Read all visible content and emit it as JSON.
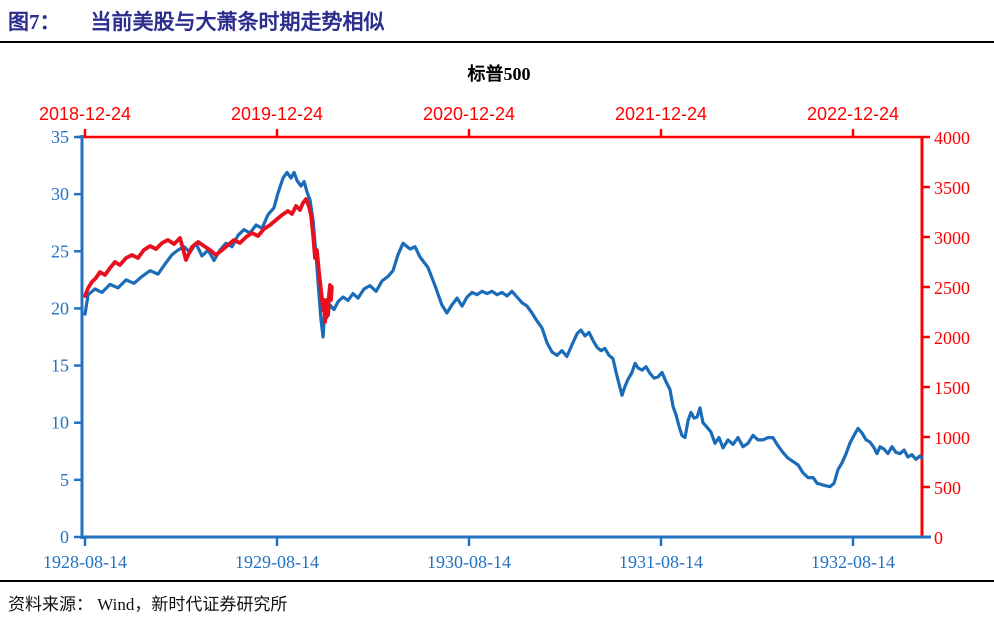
{
  "header": {
    "figure_label": "图7：",
    "title": "当前美股与大萧条时期走势相似"
  },
  "footer": {
    "source": "资料来源： Wind，新时代证券研究所"
  },
  "colors": {
    "title_navy": "#2B2E8C",
    "blue": "#1A6BB8",
    "red_text": "#FF0000",
    "red_line": "#E8101E"
  },
  "chart_data": {
    "type": "line",
    "title": "标普500",
    "legend_position": "top-center",
    "grid": false,
    "x_unit": "years_since_series_start",
    "x_tick_interval_years": 1,
    "x_span_years": 4.36,
    "top_axis": {
      "color": "#FF0000",
      "tick_labels": [
        "2018-12-24",
        "2019-12-24",
        "2020-12-24",
        "2021-12-24",
        "2022-12-24"
      ]
    },
    "bottom_axis": {
      "color": "#2272C3",
      "tick_labels": [
        "1928-08-14",
        "1929-08-14",
        "1930-08-14",
        "1931-08-14",
        "1932-08-14"
      ]
    },
    "left_axis": {
      "color": "#2272C3",
      "min": 0,
      "max": 35,
      "step": 5,
      "tick_labels": [
        "0",
        "5",
        "10",
        "15",
        "20",
        "25",
        "30",
        "35"
      ]
    },
    "right_axis": {
      "color": "#FF0000",
      "min": 0,
      "max": 4000,
      "step": 500,
      "tick_labels": [
        "0",
        "500",
        "1000",
        "1500",
        "2000",
        "2500",
        "3000",
        "3500",
        "4000"
      ]
    },
    "series": [
      {
        "id": "dow-1928-1932",
        "label": "",
        "axis": "left",
        "color": "#1A6BB8",
        "points": [
          [
            0,
            19.5
          ],
          [
            0.016,
            21.2
          ],
          [
            0.052,
            21.7
          ],
          [
            0.089,
            21.4
          ],
          [
            0.13,
            22.1
          ],
          [
            0.172,
            21.8
          ],
          [
            0.214,
            22.5
          ],
          [
            0.255,
            22.2
          ],
          [
            0.297,
            22.8
          ],
          [
            0.339,
            23.3
          ],
          [
            0.38,
            23
          ],
          [
            0.422,
            24
          ],
          [
            0.453,
            24.7
          ],
          [
            0.484,
            25.1
          ],
          [
            0.516,
            25.4
          ],
          [
            0.547,
            24.9
          ],
          [
            0.578,
            25.7
          ],
          [
            0.609,
            24.6
          ],
          [
            0.641,
            25.1
          ],
          [
            0.672,
            24.2
          ],
          [
            0.703,
            25.1
          ],
          [
            0.734,
            25.7
          ],
          [
            0.766,
            25.4
          ],
          [
            0.797,
            26.4
          ],
          [
            0.828,
            26.9
          ],
          [
            0.859,
            26.6
          ],
          [
            0.891,
            27.3
          ],
          [
            0.922,
            27
          ],
          [
            0.953,
            28.2
          ],
          [
            0.984,
            28.8
          ],
          [
            1.005,
            30.1
          ],
          [
            1.031,
            31.4
          ],
          [
            1.052,
            31.9
          ],
          [
            1.073,
            31.4
          ],
          [
            1.089,
            31.9
          ],
          [
            1.104,
            31.2
          ],
          [
            1.125,
            30.7
          ],
          [
            1.141,
            31.1
          ],
          [
            1.156,
            30.2
          ],
          [
            1.172,
            29.5
          ],
          [
            1.188,
            27.7
          ],
          [
            1.203,
            24.7
          ],
          [
            1.219,
            21.2
          ],
          [
            1.229,
            19
          ],
          [
            1.24,
            17.5
          ],
          [
            1.25,
            20.3
          ],
          [
            1.26,
            19.2
          ],
          [
            1.276,
            20.3
          ],
          [
            1.297,
            19.9
          ],
          [
            1.318,
            20.6
          ],
          [
            1.344,
            21
          ],
          [
            1.37,
            20.7
          ],
          [
            1.396,
            21.3
          ],
          [
            1.422,
            20.9
          ],
          [
            1.453,
            21.7
          ],
          [
            1.484,
            22
          ],
          [
            1.516,
            21.5
          ],
          [
            1.547,
            22.4
          ],
          [
            1.578,
            22.8
          ],
          [
            1.604,
            23.3
          ],
          [
            1.63,
            24.7
          ],
          [
            1.656,
            25.7
          ],
          [
            1.693,
            25.2
          ],
          [
            1.719,
            25.4
          ],
          [
            1.745,
            24.5
          ],
          [
            1.786,
            23.6
          ],
          [
            1.823,
            22
          ],
          [
            1.859,
            20.3
          ],
          [
            1.885,
            19.6
          ],
          [
            1.911,
            20.3
          ],
          [
            1.938,
            20.9
          ],
          [
            1.964,
            20.2
          ],
          [
            1.99,
            21
          ],
          [
            2.016,
            21.4
          ],
          [
            2.042,
            21.2
          ],
          [
            2.068,
            21.5
          ],
          [
            2.094,
            21.3
          ],
          [
            2.12,
            21.5
          ],
          [
            2.146,
            21.2
          ],
          [
            2.172,
            21.4
          ],
          [
            2.198,
            21.1
          ],
          [
            2.224,
            21.5
          ],
          [
            2.25,
            21
          ],
          [
            2.276,
            20.5
          ],
          [
            2.302,
            20.2
          ],
          [
            2.328,
            19.6
          ],
          [
            2.354,
            18.9
          ],
          [
            2.38,
            18.3
          ],
          [
            2.406,
            17
          ],
          [
            2.432,
            16.2
          ],
          [
            2.458,
            15.9
          ],
          [
            2.484,
            16.3
          ],
          [
            2.51,
            15.8
          ],
          [
            2.536,
            16.8
          ],
          [
            2.563,
            17.8
          ],
          [
            2.583,
            18.1
          ],
          [
            2.604,
            17.6
          ],
          [
            2.625,
            17.9
          ],
          [
            2.646,
            17.2
          ],
          [
            2.667,
            16.6
          ],
          [
            2.688,
            16.3
          ],
          [
            2.708,
            16.5
          ],
          [
            2.729,
            15.9
          ],
          [
            2.75,
            15.6
          ],
          [
            2.766,
            14.4
          ],
          [
            2.781,
            13.4
          ],
          [
            2.797,
            12.4
          ],
          [
            2.813,
            13.2
          ],
          [
            2.828,
            13.8
          ],
          [
            2.849,
            14.4
          ],
          [
            2.865,
            15.2
          ],
          [
            2.88,
            14.8
          ],
          [
            2.901,
            14.6
          ],
          [
            2.922,
            14.9
          ],
          [
            2.943,
            14.3
          ],
          [
            2.964,
            13.9
          ],
          [
            2.984,
            14
          ],
          [
            3.005,
            14.4
          ],
          [
            3.026,
            13.6
          ],
          [
            3.047,
            12.9
          ],
          [
            3.063,
            11.4
          ],
          [
            3.078,
            10.7
          ],
          [
            3.094,
            9.7
          ],
          [
            3.109,
            8.9
          ],
          [
            3.125,
            8.7
          ],
          [
            3.141,
            10.2
          ],
          [
            3.156,
            10.9
          ],
          [
            3.172,
            10.4
          ],
          [
            3.188,
            10.5
          ],
          [
            3.203,
            11.3
          ],
          [
            3.219,
            10
          ],
          [
            3.24,
            9.6
          ],
          [
            3.26,
            9.2
          ],
          [
            3.281,
            8.2
          ],
          [
            3.302,
            8.7
          ],
          [
            3.323,
            7.8
          ],
          [
            3.349,
            8.5
          ],
          [
            3.375,
            8.1
          ],
          [
            3.401,
            8.7
          ],
          [
            3.427,
            7.9
          ],
          [
            3.453,
            8.2
          ],
          [
            3.479,
            8.9
          ],
          [
            3.505,
            8.5
          ],
          [
            3.531,
            8.5
          ],
          [
            3.557,
            8.7
          ],
          [
            3.583,
            8.7
          ],
          [
            3.609,
            8
          ],
          [
            3.635,
            7.4
          ],
          [
            3.661,
            6.9
          ],
          [
            3.688,
            6.6
          ],
          [
            3.714,
            6.3
          ],
          [
            3.74,
            5.6
          ],
          [
            3.766,
            5.2
          ],
          [
            3.792,
            5.2
          ],
          [
            3.813,
            4.7
          ],
          [
            3.833,
            4.6
          ],
          [
            3.854,
            4.5
          ],
          [
            3.88,
            4.4
          ],
          [
            3.901,
            4.7
          ],
          [
            3.922,
            5.9
          ],
          [
            3.943,
            6.5
          ],
          [
            3.964,
            7.3
          ],
          [
            3.984,
            8.2
          ],
          [
            4.005,
            8.9
          ],
          [
            4.026,
            9.5
          ],
          [
            4.047,
            9.1
          ],
          [
            4.068,
            8.5
          ],
          [
            4.089,
            8.3
          ],
          [
            4.11,
            7.8
          ],
          [
            4.125,
            7.3
          ],
          [
            4.141,
            7.9
          ],
          [
            4.161,
            7.7
          ],
          [
            4.182,
            7.3
          ],
          [
            4.203,
            7.9
          ],
          [
            4.224,
            7.4
          ],
          [
            4.245,
            7.3
          ],
          [
            4.266,
            7.6
          ],
          [
            4.286,
            7
          ],
          [
            4.307,
            7.2
          ],
          [
            4.328,
            6.8
          ],
          [
            4.349,
            7.1
          ],
          [
            4.359,
            6.9
          ]
        ]
      },
      {
        "id": "sp500-2018-2020",
        "label": "标普500",
        "axis": "right",
        "color": "#E8101E",
        "points": [
          [
            0,
            2410
          ],
          [
            0.016,
            2490
          ],
          [
            0.036,
            2550
          ],
          [
            0.057,
            2590
          ],
          [
            0.078,
            2650
          ],
          [
            0.104,
            2620
          ],
          [
            0.13,
            2690
          ],
          [
            0.156,
            2750
          ],
          [
            0.182,
            2720
          ],
          [
            0.214,
            2790
          ],
          [
            0.245,
            2820
          ],
          [
            0.276,
            2790
          ],
          [
            0.307,
            2870
          ],
          [
            0.339,
            2910
          ],
          [
            0.37,
            2880
          ],
          [
            0.401,
            2940
          ],
          [
            0.432,
            2970
          ],
          [
            0.464,
            2930
          ],
          [
            0.495,
            2990
          ],
          [
            0.526,
            2770
          ],
          [
            0.557,
            2900
          ],
          [
            0.589,
            2950
          ],
          [
            0.62,
            2910
          ],
          [
            0.651,
            2870
          ],
          [
            0.682,
            2820
          ],
          [
            0.714,
            2870
          ],
          [
            0.745,
            2920
          ],
          [
            0.776,
            2970
          ],
          [
            0.807,
            2940
          ],
          [
            0.839,
            3000
          ],
          [
            0.87,
            3040
          ],
          [
            0.901,
            3010
          ],
          [
            0.932,
            3080
          ],
          [
            0.964,
            3120
          ],
          [
            0.995,
            3170
          ],
          [
            1.026,
            3220
          ],
          [
            1.057,
            3260
          ],
          [
            1.078,
            3230
          ],
          [
            1.099,
            3310
          ],
          [
            1.12,
            3270
          ],
          [
            1.135,
            3340
          ],
          [
            1.151,
            3380
          ],
          [
            1.167,
            3300
          ],
          [
            1.177,
            3220
          ],
          [
            1.188,
            3020
          ],
          [
            1.198,
            2790
          ],
          [
            1.208,
            2870
          ],
          [
            1.219,
            2650
          ],
          [
            1.229,
            2470
          ],
          [
            1.24,
            2270
          ],
          [
            1.245,
            2370
          ],
          [
            1.25,
            2150
          ],
          [
            1.255,
            2270
          ],
          [
            1.26,
            2370
          ],
          [
            1.266,
            2220
          ],
          [
            1.271,
            2420
          ],
          [
            1.276,
            2520
          ],
          [
            1.281,
            2370
          ],
          [
            1.286,
            2500
          ]
        ]
      }
    ]
  }
}
